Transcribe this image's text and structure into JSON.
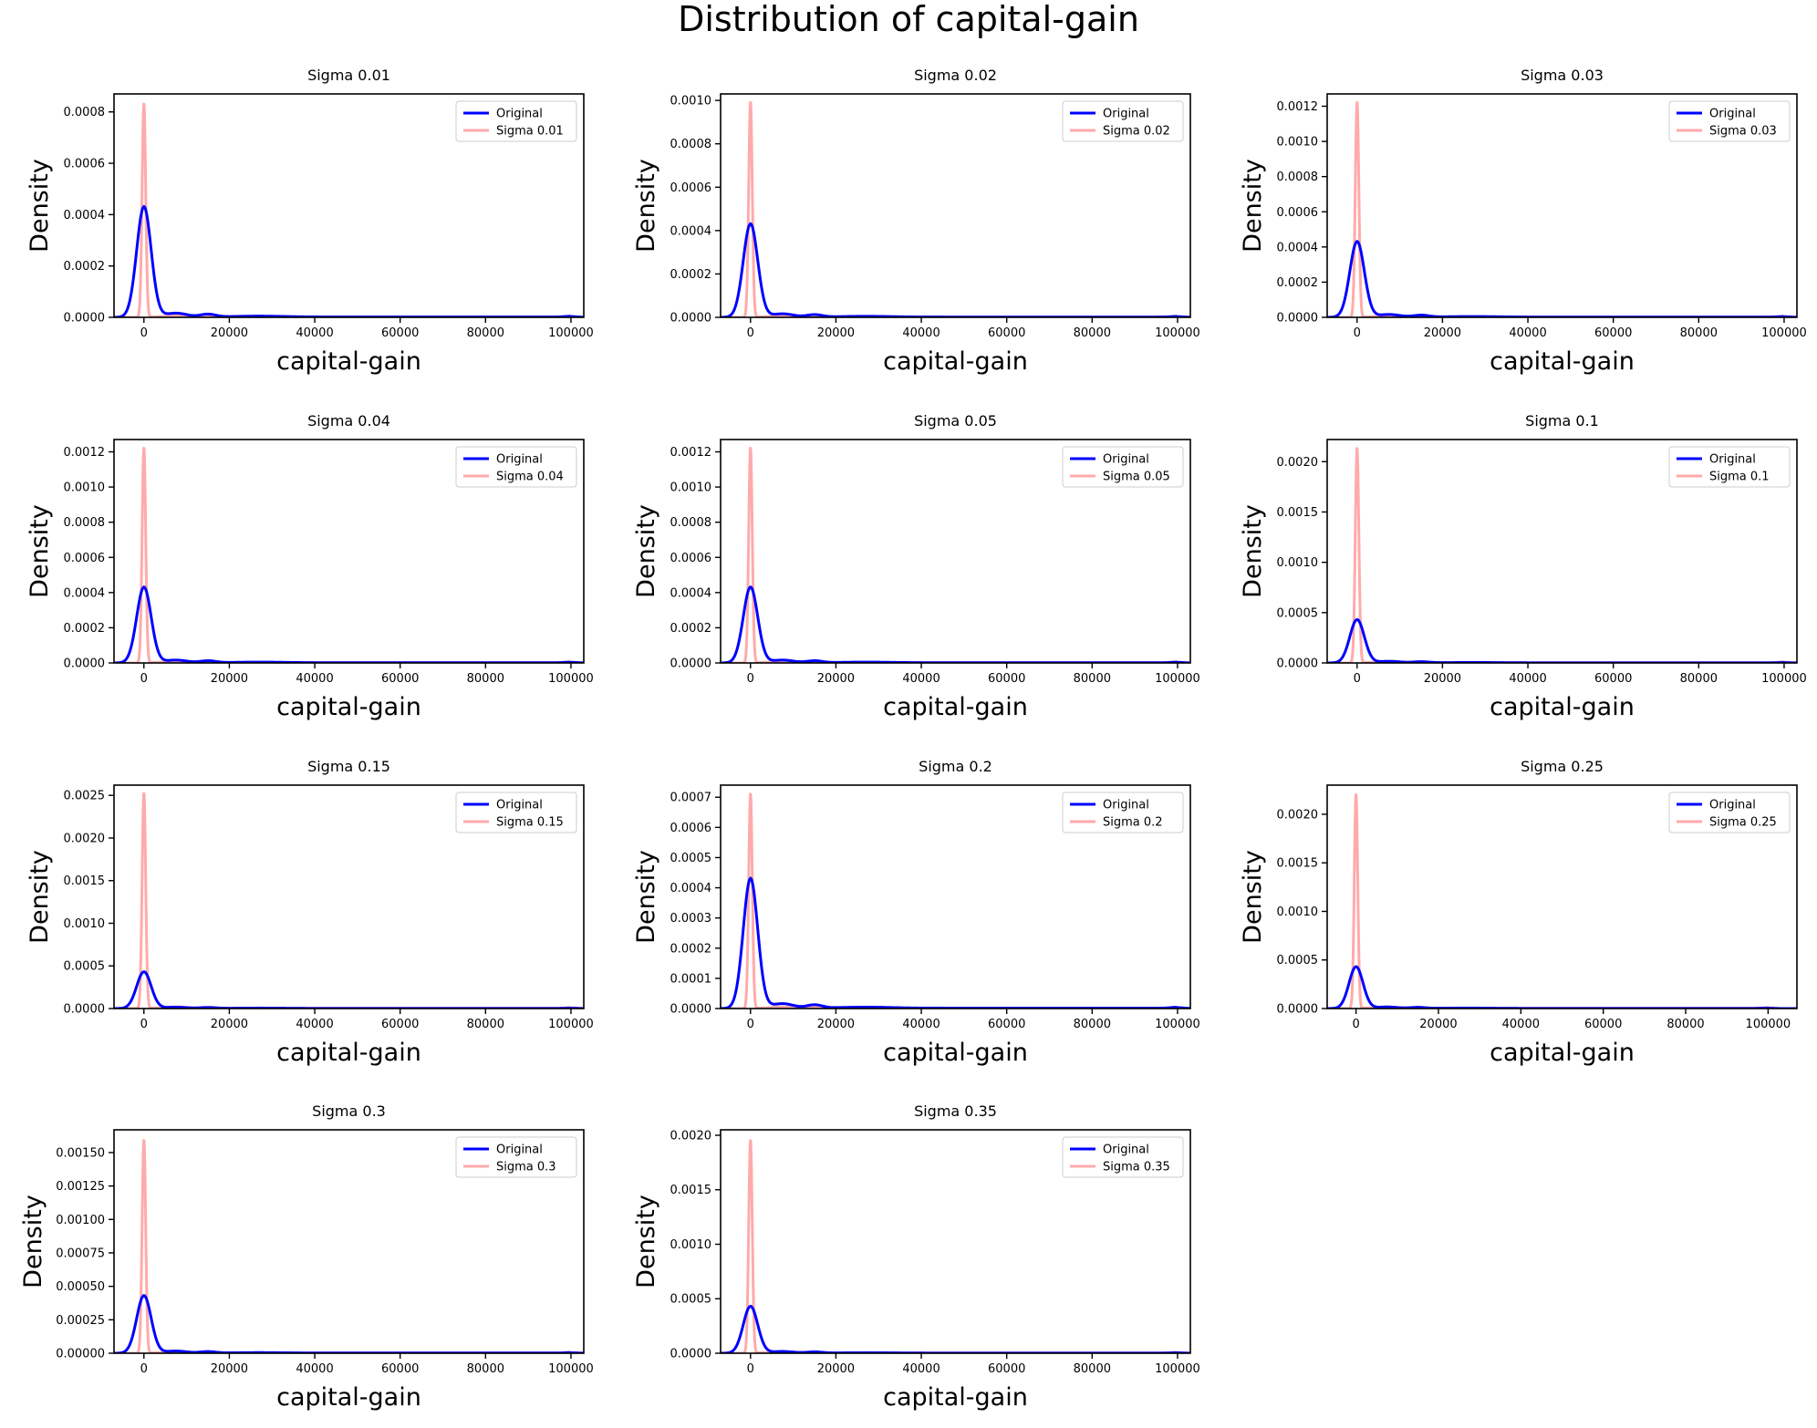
{
  "figure": {
    "title": "Distribution of capital-gain",
    "colors": {
      "original": "#0000ff",
      "perturbed": "#ffaaaa",
      "axes": "#000000"
    }
  },
  "chart_data": [
    {
      "type": "line",
      "title": "Sigma 0.01",
      "xlabel": "capital-gain",
      "ylabel": "Density",
      "xlim": [
        -7000,
        103000
      ],
      "ylim": [
        0,
        0.00087
      ],
      "xticks": [
        0,
        20000,
        40000,
        60000,
        80000,
        100000
      ],
      "yticks": [
        0,
        0.0002,
        0.0004,
        0.0006,
        0.0008
      ],
      "ytick_labels": [
        "0.0000",
        "0.0002",
        "0.0004",
        "0.0006",
        "0.0008"
      ],
      "legend_position": "upper right",
      "series": [
        {
          "name": "Original",
          "color": "#0000ff",
          "peak_x": 0,
          "peak_density": 0.00043
        },
        {
          "name": "Sigma 0.01",
          "color": "#ffaaaa",
          "peak_x": 0,
          "peak_density": 0.00083
        }
      ]
    },
    {
      "type": "line",
      "title": "Sigma 0.02",
      "xlabel": "capital-gain",
      "ylabel": "Density",
      "xlim": [
        -7000,
        103000
      ],
      "ylim": [
        0,
        0.00103
      ],
      "xticks": [
        0,
        20000,
        40000,
        60000,
        80000,
        100000
      ],
      "yticks": [
        0,
        0.0002,
        0.0004,
        0.0006,
        0.0008,
        0.001
      ],
      "ytick_labels": [
        "0.0000",
        "0.0002",
        "0.0004",
        "0.0006",
        "0.0008",
        "0.0010"
      ],
      "legend_position": "upper right",
      "series": [
        {
          "name": "Original",
          "color": "#0000ff",
          "peak_x": 0,
          "peak_density": 0.00043
        },
        {
          "name": "Sigma 0.02",
          "color": "#ffaaaa",
          "peak_x": 0,
          "peak_density": 0.00099
        }
      ]
    },
    {
      "type": "line",
      "title": "Sigma 0.03",
      "xlabel": "capital-gain",
      "ylabel": "Density",
      "xlim": [
        -7000,
        103000
      ],
      "ylim": [
        0,
        0.00127
      ],
      "xticks": [
        0,
        20000,
        40000,
        60000,
        80000,
        100000
      ],
      "yticks": [
        0,
        0.0002,
        0.0004,
        0.0006,
        0.0008,
        0.001,
        0.0012
      ],
      "ytick_labels": [
        "0.0000",
        "0.0002",
        "0.0004",
        "0.0006",
        "0.0008",
        "0.0010",
        "0.0012"
      ],
      "legend_position": "upper right",
      "series": [
        {
          "name": "Original",
          "color": "#0000ff",
          "peak_x": 0,
          "peak_density": 0.00043
        },
        {
          "name": "Sigma 0.03",
          "color": "#ffaaaa",
          "peak_x": 0,
          "peak_density": 0.00122
        }
      ]
    },
    {
      "type": "line",
      "title": "Sigma 0.04",
      "xlabel": "capital-gain",
      "ylabel": "Density",
      "xlim": [
        -7000,
        103000
      ],
      "ylim": [
        0,
        0.00127
      ],
      "xticks": [
        0,
        20000,
        40000,
        60000,
        80000,
        100000
      ],
      "yticks": [
        0,
        0.0002,
        0.0004,
        0.0006,
        0.0008,
        0.001,
        0.0012
      ],
      "ytick_labels": [
        "0.0000",
        "0.0002",
        "0.0004",
        "0.0006",
        "0.0008",
        "0.0010",
        "0.0012"
      ],
      "legend_position": "upper right",
      "series": [
        {
          "name": "Original",
          "color": "#0000ff",
          "peak_x": 0,
          "peak_density": 0.00043
        },
        {
          "name": "Sigma 0.04",
          "color": "#ffaaaa",
          "peak_x": 0,
          "peak_density": 0.00122
        }
      ]
    },
    {
      "type": "line",
      "title": "Sigma 0.05",
      "xlabel": "capital-gain",
      "ylabel": "Density",
      "xlim": [
        -7000,
        103000
      ],
      "ylim": [
        0,
        0.00127
      ],
      "xticks": [
        0,
        20000,
        40000,
        60000,
        80000,
        100000
      ],
      "yticks": [
        0,
        0.0002,
        0.0004,
        0.0006,
        0.0008,
        0.001,
        0.0012
      ],
      "ytick_labels": [
        "0.0000",
        "0.0002",
        "0.0004",
        "0.0006",
        "0.0008",
        "0.0010",
        "0.0012"
      ],
      "legend_position": "upper right",
      "series": [
        {
          "name": "Original",
          "color": "#0000ff",
          "peak_x": 0,
          "peak_density": 0.00043
        },
        {
          "name": "Sigma 0.05",
          "color": "#ffaaaa",
          "peak_x": 0,
          "peak_density": 0.00122
        }
      ]
    },
    {
      "type": "line",
      "title": "Sigma 0.1",
      "xlabel": "capital-gain",
      "ylabel": "Density",
      "xlim": [
        -7000,
        103000
      ],
      "ylim": [
        0,
        0.00222
      ],
      "xticks": [
        0,
        20000,
        40000,
        60000,
        80000,
        100000
      ],
      "yticks": [
        0,
        0.0005,
        0.001,
        0.0015,
        0.002
      ],
      "ytick_labels": [
        "0.0000",
        "0.0005",
        "0.0010",
        "0.0015",
        "0.0020"
      ],
      "legend_position": "upper right",
      "series": [
        {
          "name": "Original",
          "color": "#0000ff",
          "peak_x": 0,
          "peak_density": 0.00043
        },
        {
          "name": "Sigma 0.1",
          "color": "#ffaaaa",
          "peak_x": 0,
          "peak_density": 0.00213
        }
      ]
    },
    {
      "type": "line",
      "title": "Sigma 0.15",
      "xlabel": "capital-gain",
      "ylabel": "Density",
      "xlim": [
        -7000,
        103000
      ],
      "ylim": [
        0,
        0.00262
      ],
      "xticks": [
        0,
        20000,
        40000,
        60000,
        80000,
        100000
      ],
      "yticks": [
        0,
        0.0005,
        0.001,
        0.0015,
        0.002,
        0.0025
      ],
      "ytick_labels": [
        "0.0000",
        "0.0005",
        "0.0010",
        "0.0015",
        "0.0020",
        "0.0025"
      ],
      "legend_position": "upper right",
      "series": [
        {
          "name": "Original",
          "color": "#0000ff",
          "peak_x": 0,
          "peak_density": 0.00043
        },
        {
          "name": "Sigma 0.15",
          "color": "#ffaaaa",
          "peak_x": 0,
          "peak_density": 0.00252
        }
      ]
    },
    {
      "type": "line",
      "title": "Sigma 0.2",
      "xlabel": "capital-gain",
      "ylabel": "Density",
      "xlim": [
        -7000,
        103000
      ],
      "ylim": [
        0,
        0.00074
      ],
      "xticks": [
        0,
        20000,
        40000,
        60000,
        80000,
        100000
      ],
      "yticks": [
        0,
        0.0001,
        0.0002,
        0.0003,
        0.0004,
        0.0005,
        0.0006,
        0.0007
      ],
      "ytick_labels": [
        "0.0000",
        "0.0001",
        "0.0002",
        "0.0003",
        "0.0004",
        "0.0005",
        "0.0006",
        "0.0007"
      ],
      "legend_position": "upper right",
      "series": [
        {
          "name": "Original",
          "color": "#0000ff",
          "peak_x": 0,
          "peak_density": 0.00043
        },
        {
          "name": "Sigma 0.2",
          "color": "#ffaaaa",
          "peak_x": 0,
          "peak_density": 0.00071
        }
      ]
    },
    {
      "type": "line",
      "title": "Sigma 0.25",
      "xlabel": "capital-gain",
      "ylabel": "Density",
      "xlim": [
        -7000,
        107000
      ],
      "ylim": [
        0,
        0.0023
      ],
      "xticks": [
        0,
        20000,
        40000,
        60000,
        80000,
        100000
      ],
      "yticks": [
        0,
        0.0005,
        0.001,
        0.0015,
        0.002
      ],
      "ytick_labels": [
        "0.0000",
        "0.0005",
        "0.0010",
        "0.0015",
        "0.0020"
      ],
      "legend_position": "upper right",
      "series": [
        {
          "name": "Original",
          "color": "#0000ff",
          "peak_x": 0,
          "peak_density": 0.00043
        },
        {
          "name": "Sigma 0.25",
          "color": "#ffaaaa",
          "peak_x": 0,
          "peak_density": 0.0022
        }
      ]
    },
    {
      "type": "line",
      "title": "Sigma 0.3",
      "xlabel": "capital-gain",
      "ylabel": "Density",
      "xlim": [
        -7000,
        103000
      ],
      "ylim": [
        0,
        0.00167
      ],
      "xticks": [
        0,
        20000,
        40000,
        60000,
        80000,
        100000
      ],
      "yticks": [
        0,
        0.00025,
        0.0005,
        0.00075,
        0.001,
        0.00125,
        0.0015
      ],
      "ytick_labels": [
        "0.00000",
        "0.00025",
        "0.00050",
        "0.00075",
        "0.00100",
        "0.00125",
        "0.00150"
      ],
      "legend_position": "upper right",
      "series": [
        {
          "name": "Original",
          "color": "#0000ff",
          "peak_x": 0,
          "peak_density": 0.00043
        },
        {
          "name": "Sigma 0.3",
          "color": "#ffaaaa",
          "peak_x": 0,
          "peak_density": 0.00159
        }
      ]
    },
    {
      "type": "line",
      "title": "Sigma 0.35",
      "xlabel": "capital-gain",
      "ylabel": "Density",
      "xlim": [
        -7000,
        103000
      ],
      "ylim": [
        0,
        0.00205
      ],
      "xticks": [
        0,
        20000,
        40000,
        60000,
        80000,
        100000
      ],
      "yticks": [
        0,
        0.0005,
        0.001,
        0.0015,
        0.002
      ],
      "ytick_labels": [
        "0.0000",
        "0.0005",
        "0.0010",
        "0.0015",
        "0.0020"
      ],
      "legend_position": "upper right",
      "series": [
        {
          "name": "Original",
          "color": "#0000ff",
          "peak_x": 0,
          "peak_density": 0.00043
        },
        {
          "name": "Sigma 0.35",
          "color": "#ffaaaa",
          "peak_x": 0,
          "peak_density": 0.00195
        }
      ]
    }
  ]
}
